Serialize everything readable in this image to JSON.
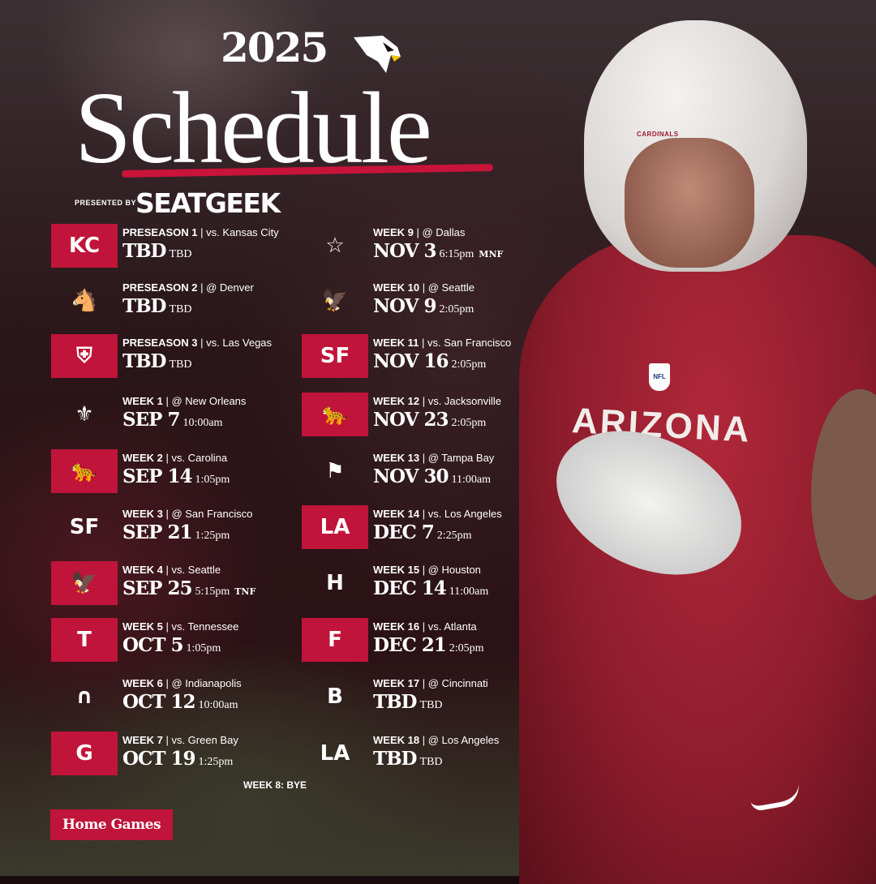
{
  "header": {
    "year": "2025",
    "title": "Schedule",
    "presented_by": "PRESENTED BY",
    "sponsor": "SEATGEEK"
  },
  "colors": {
    "accent": "#c0143a",
    "background": "#1a0c0e",
    "text": "#ffffff"
  },
  "player": {
    "helmet_label": "CARDINALS",
    "jersey_text": "ARIZONA",
    "badge": "NFL"
  },
  "schedule": {
    "left": [
      {
        "week": "PRESEASON 1",
        "opponent": "vs. Kansas City",
        "date": "TBD",
        "time": "TBD",
        "tag": "",
        "home": true,
        "logo": "chiefs-logo",
        "glyph": "KC"
      },
      {
        "week": "PRESEASON 2",
        "opponent": "@ Denver",
        "date": "TBD",
        "time": "TBD",
        "tag": "",
        "home": false,
        "logo": "broncos-logo",
        "glyph": "🐴"
      },
      {
        "week": "PRESEASON 3",
        "opponent": "vs. Las Vegas",
        "date": "TBD",
        "time": "TBD",
        "tag": "",
        "home": true,
        "logo": "raiders-logo",
        "glyph": "⛨"
      },
      {
        "week": "WEEK 1",
        "opponent": "@ New Orleans",
        "date": "SEP 7",
        "time": "10:00am",
        "tag": "",
        "home": false,
        "logo": "saints-logo",
        "glyph": "⚜"
      },
      {
        "week": "WEEK 2",
        "opponent": "vs. Carolina",
        "date": "SEP 14",
        "time": "1:05pm",
        "tag": "",
        "home": true,
        "logo": "panthers-logo",
        "glyph": "🐆"
      },
      {
        "week": "WEEK 3",
        "opponent": "@ San Francisco",
        "date": "SEP 21",
        "time": "1:25pm",
        "tag": "",
        "home": false,
        "logo": "49ers-logo",
        "glyph": "SF"
      },
      {
        "week": "WEEK 4",
        "opponent": "vs. Seattle",
        "date": "SEP 25",
        "time": "5:15pm",
        "tag": "TNF",
        "home": true,
        "logo": "seahawks-logo",
        "glyph": "🦅"
      },
      {
        "week": "WEEK 5",
        "opponent": "vs. Tennessee",
        "date": "OCT 5",
        "time": "1:05pm",
        "tag": "",
        "home": true,
        "logo": "titans-logo",
        "glyph": "T"
      },
      {
        "week": "WEEK 6",
        "opponent": "@ Indianapolis",
        "date": "OCT 12",
        "time": "10:00am",
        "tag": "",
        "home": false,
        "logo": "colts-logo",
        "glyph": "∩"
      },
      {
        "week": "WEEK 7",
        "opponent": "vs. Green Bay",
        "date": "OCT 19",
        "time": "1:25pm",
        "tag": "",
        "home": true,
        "logo": "packers-logo",
        "glyph": "G"
      }
    ],
    "right": [
      {
        "week": "WEEK 9",
        "opponent": "@ Dallas",
        "date": "NOV 3",
        "time": "6:15pm",
        "tag": "MNF",
        "home": false,
        "logo": "cowboys-logo",
        "glyph": "☆"
      },
      {
        "week": "WEEK 10",
        "opponent": "@ Seattle",
        "date": "NOV 9",
        "time": "2:05pm",
        "tag": "",
        "home": false,
        "logo": "seahawks-logo",
        "glyph": "🦅"
      },
      {
        "week": "WEEK 11",
        "opponent": "vs. San Francisco",
        "date": "NOV 16",
        "time": "2:05pm",
        "tag": "",
        "home": true,
        "logo": "49ers-logo",
        "glyph": "SF"
      },
      {
        "week": "WEEK 12",
        "opponent": "vs. Jacksonville",
        "date": "NOV 23",
        "time": "2:05pm",
        "tag": "",
        "home": true,
        "logo": "jaguars-logo",
        "glyph": "🐆"
      },
      {
        "week": "WEEK 13",
        "opponent": "@ Tampa Bay",
        "date": "NOV 30",
        "time": "11:00am",
        "tag": "",
        "home": false,
        "logo": "buccaneers-logo",
        "glyph": "⚑"
      },
      {
        "week": "WEEK 14",
        "opponent": "vs. Los Angeles",
        "date": "DEC 7",
        "time": "2:25pm",
        "tag": "",
        "home": true,
        "logo": "rams-logo",
        "glyph": "LA"
      },
      {
        "week": "WEEK 15",
        "opponent": "@ Houston",
        "date": "DEC 14",
        "time": "11:00am",
        "tag": "",
        "home": false,
        "logo": "texans-logo",
        "glyph": "H"
      },
      {
        "week": "WEEK 16",
        "opponent": "vs. Atlanta",
        "date": "DEC 21",
        "time": "2:05pm",
        "tag": "",
        "home": true,
        "logo": "falcons-logo",
        "glyph": "F"
      },
      {
        "week": "WEEK 17",
        "opponent": "@ Cincinnati",
        "date": "TBD",
        "time": "TBD",
        "tag": "",
        "home": false,
        "logo": "bengals-logo",
        "glyph": "B"
      },
      {
        "week": "WEEK 18",
        "opponent": "@ Los Angeles",
        "date": "TBD",
        "time": "TBD",
        "tag": "",
        "home": false,
        "logo": "rams-logo",
        "glyph": "LA"
      }
    ],
    "bye": "WEEK 8: BYE"
  },
  "legend": {
    "home_games": "Home Games"
  }
}
